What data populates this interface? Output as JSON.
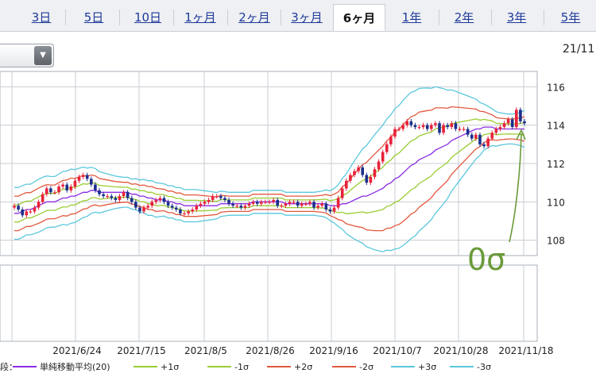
{
  "tabs": [
    {
      "label": "3日",
      "active": false
    },
    {
      "label": "5日",
      "active": false
    },
    {
      "label": "10日",
      "active": false
    },
    {
      "label": "1ヶ月",
      "active": false
    },
    {
      "label": "2ヶ月",
      "active": false
    },
    {
      "label": "3ヶ月",
      "active": false
    },
    {
      "label": "6ヶ月",
      "active": true
    },
    {
      "label": "1年",
      "active": false
    },
    {
      "label": "2年",
      "active": false
    },
    {
      "label": "3年",
      "active": false
    },
    {
      "label": "5年",
      "active": false
    }
  ],
  "dropdown": {
    "value": ""
  },
  "header": {
    "date_fragment": "21/11"
  },
  "annotation": {
    "text": "0σ",
    "color": "#6a9a3a"
  },
  "legend": {
    "prefix": "段：",
    "items": [
      {
        "label": "単純移動平均(20)",
        "color": "#8a2be2"
      },
      {
        "label": "+1σ",
        "color": "#9acd32"
      },
      {
        "label": "-1σ",
        "color": "#9acd32"
      },
      {
        "label": "+2σ",
        "color": "#e2583e"
      },
      {
        "label": "-2σ",
        "color": "#e2583e"
      },
      {
        "label": "+3σ",
        "color": "#5bc8dc"
      },
      {
        "label": "-3σ",
        "color": "#5bc8dc"
      }
    ]
  },
  "chart_data": {
    "type": "line",
    "title": "",
    "x_tick_labels": [
      "2021/6/24",
      "2021/7/15",
      "2021/8/5",
      "2021/8/26",
      "2021/9/16",
      "2021/10/7",
      "2021/10/28",
      "2021/11/18"
    ],
    "y_ticks": [
      108,
      110,
      112,
      114,
      116
    ],
    "ylim": [
      107.2,
      116.8
    ],
    "grid": true,
    "legend_position": "bottom",
    "candle_colors": {
      "up": "#e8213a",
      "down": "#1a2f8a"
    },
    "close": [
      109.8,
      109.6,
      109.3,
      109.5,
      109.5,
      109.7,
      110.0,
      110.4,
      110.7,
      110.5,
      110.5,
      110.8,
      110.9,
      110.6,
      110.8,
      111.1,
      111.3,
      111.4,
      111.2,
      110.9,
      110.6,
      110.4,
      110.3,
      110.3,
      110.2,
      110.1,
      110.3,
      110.5,
      110.2,
      110.0,
      109.7,
      109.5,
      109.7,
      109.8,
      110.0,
      110.1,
      110.2,
      110.0,
      109.8,
      109.7,
      109.6,
      109.4,
      109.4,
      109.5,
      109.6,
      109.8,
      109.9,
      110.0,
      110.1,
      110.3,
      110.3,
      110.2,
      110.1,
      109.9,
      109.8,
      109.8,
      109.7,
      109.8,
      109.9,
      110.0,
      109.9,
      110.0,
      110.0,
      110.0,
      110.1,
      109.8,
      109.8,
      109.9,
      110.0,
      110.0,
      109.8,
      109.9,
      109.9,
      110.0,
      109.7,
      109.8,
      109.9,
      109.6,
      109.5,
      109.7,
      110.2,
      110.7,
      111.1,
      111.4,
      111.6,
      111.8,
      111.4,
      111.0,
      111.3,
      111.7,
      112.1,
      112.6,
      113.0,
      113.4,
      113.8,
      113.8,
      114.0,
      114.2,
      114.0,
      113.9,
      113.9,
      114.0,
      113.8,
      114.0,
      114.1,
      113.6,
      114.0,
      113.9,
      114.1,
      113.8,
      113.8,
      113.8,
      113.5,
      113.3,
      113.5,
      113.0,
      112.9,
      113.3,
      113.6,
      113.8,
      113.9,
      114.1,
      114.3,
      113.9,
      114.8,
      114.2,
      114.1
    ],
    "sma20": [
      109.4,
      109.4,
      109.5,
      109.6,
      109.6,
      109.7,
      109.8,
      109.9,
      110.0,
      110.0,
      110.0,
      110.1,
      110.2,
      110.2,
      110.3,
      110.3,
      110.4,
      110.5,
      110.5,
      110.6,
      110.6,
      110.5,
      110.5,
      110.5,
      110.5,
      110.5,
      110.5,
      110.5,
      110.5,
      110.4,
      110.4,
      110.3,
      110.3,
      110.2,
      110.2,
      110.1,
      110.1,
      110.1,
      110.0,
      110.0,
      109.9,
      109.9,
      109.8,
      109.8,
      109.8,
      109.8,
      109.8,
      109.8,
      109.8,
      109.8,
      109.8,
      109.9,
      109.9,
      109.9,
      109.9,
      109.9,
      109.9,
      109.9,
      109.9,
      110.0,
      110.0,
      110.0,
      110.0,
      110.0,
      110.0,
      110.0,
      110.0,
      109.9,
      109.9,
      109.9,
      109.9,
      109.9,
      109.9,
      109.9,
      109.9,
      109.9,
      109.9,
      109.9,
      109.8,
      109.8,
      109.8,
      109.9,
      109.9,
      110.0,
      110.1,
      110.2,
      110.3,
      110.3,
      110.4,
      110.5,
      110.6,
      110.7,
      110.9,
      111.0,
      111.2,
      111.3,
      111.5,
      111.7,
      111.9,
      112.0,
      112.2,
      112.3,
      112.4,
      112.5,
      112.7,
      112.8,
      112.9,
      113.0,
      113.2,
      113.3,
      113.4,
      113.5,
      113.6,
      113.7,
      113.8,
      113.8,
      113.9,
      113.9,
      113.9,
      113.8,
      113.8,
      113.8,
      113.8,
      113.8,
      113.8,
      113.8,
      113.8
    ],
    "sigma": [
      0.45,
      0.45,
      0.45,
      0.44,
      0.44,
      0.45,
      0.46,
      0.46,
      0.45,
      0.44,
      0.44,
      0.45,
      0.46,
      0.47,
      0.47,
      0.46,
      0.45,
      0.44,
      0.42,
      0.4,
      0.38,
      0.36,
      0.34,
      0.32,
      0.3,
      0.28,
      0.27,
      0.26,
      0.26,
      0.26,
      0.27,
      0.28,
      0.29,
      0.3,
      0.3,
      0.3,
      0.29,
      0.28,
      0.28,
      0.28,
      0.28,
      0.28,
      0.28,
      0.28,
      0.28,
      0.28,
      0.27,
      0.26,
      0.25,
      0.24,
      0.23,
      0.22,
      0.21,
      0.2,
      0.2,
      0.2,
      0.2,
      0.2,
      0.2,
      0.2,
      0.2,
      0.2,
      0.2,
      0.2,
      0.2,
      0.2,
      0.2,
      0.2,
      0.2,
      0.2,
      0.2,
      0.2,
      0.2,
      0.2,
      0.2,
      0.21,
      0.22,
      0.24,
      0.26,
      0.3,
      0.36,
      0.44,
      0.52,
      0.6,
      0.68,
      0.75,
      0.82,
      0.88,
      0.94,
      1.0,
      1.05,
      1.1,
      1.14,
      1.18,
      1.22,
      1.24,
      1.26,
      1.27,
      1.27,
      1.26,
      1.24,
      1.21,
      1.18,
      1.14,
      1.1,
      1.05,
      1.0,
      0.94,
      0.88,
      0.82,
      0.76,
      0.7,
      0.64,
      0.58,
      0.52,
      0.46,
      0.4,
      0.36,
      0.32,
      0.3,
      0.28,
      0.27,
      0.26,
      0.26,
      0.27,
      0.29,
      0.32
    ]
  }
}
